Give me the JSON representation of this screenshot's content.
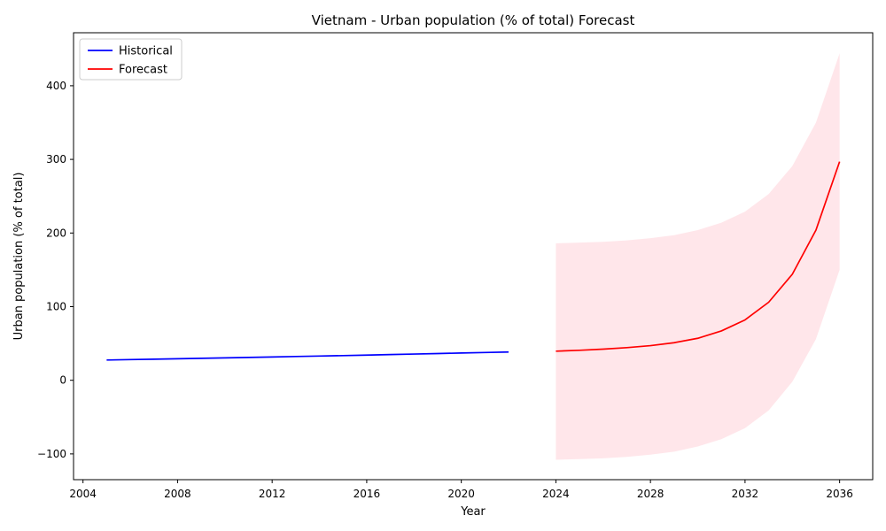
{
  "chart_data": {
    "type": "line",
    "title": "Vietnam - Urban population (% of total) Forecast",
    "xlabel": "Year",
    "ylabel": "Urban population (% of total)",
    "xlim": [
      2003.6,
      2037.4
    ],
    "ylim": [
      -135,
      472
    ],
    "xticks": [
      2004,
      2008,
      2012,
      2016,
      2020,
      2024,
      2028,
      2032,
      2036
    ],
    "yticks": [
      -100,
      0,
      100,
      200,
      300,
      400
    ],
    "grid": false,
    "legend_position": "top-left",
    "series": [
      {
        "name": "Historical",
        "color": "#0000ff",
        "x": [
          2005,
          2006,
          2007,
          2008,
          2009,
          2010,
          2011,
          2012,
          2013,
          2014,
          2015,
          2016,
          2017,
          2018,
          2019,
          2020,
          2021,
          2022
        ],
        "y": [
          27.5,
          28.1,
          28.6,
          29.2,
          29.8,
          30.4,
          31.0,
          31.6,
          32.3,
          32.9,
          33.5,
          34.2,
          34.9,
          35.6,
          36.3,
          37.0,
          37.7,
          38.4
        ]
      },
      {
        "name": "Forecast",
        "color": "#ff0000",
        "x": [
          2024,
          2025,
          2026,
          2027,
          2028,
          2029,
          2030,
          2031,
          2032,
          2033,
          2034,
          2035,
          2036
        ],
        "y": [
          39.5,
          40.7,
          42.3,
          44.3,
          47.0,
          51.0,
          57.0,
          67.0,
          82.0,
          106.0,
          144.0,
          204.0,
          297.0
        ]
      }
    ],
    "confidence_band": {
      "color": "#ffc0cb",
      "x": [
        2024,
        2025,
        2026,
        2027,
        2028,
        2029,
        2030,
        2031,
        2032,
        2033,
        2034,
        2035,
        2036
      ],
      "lower": [
        -108,
        -107,
        -106,
        -104,
        -101,
        -97,
        -90,
        -80,
        -65,
        -41,
        -2,
        56,
        150
      ],
      "upper": [
        186,
        187,
        188,
        190,
        193,
        197,
        204,
        214,
        229,
        253,
        291,
        350,
        444
      ]
    }
  }
}
